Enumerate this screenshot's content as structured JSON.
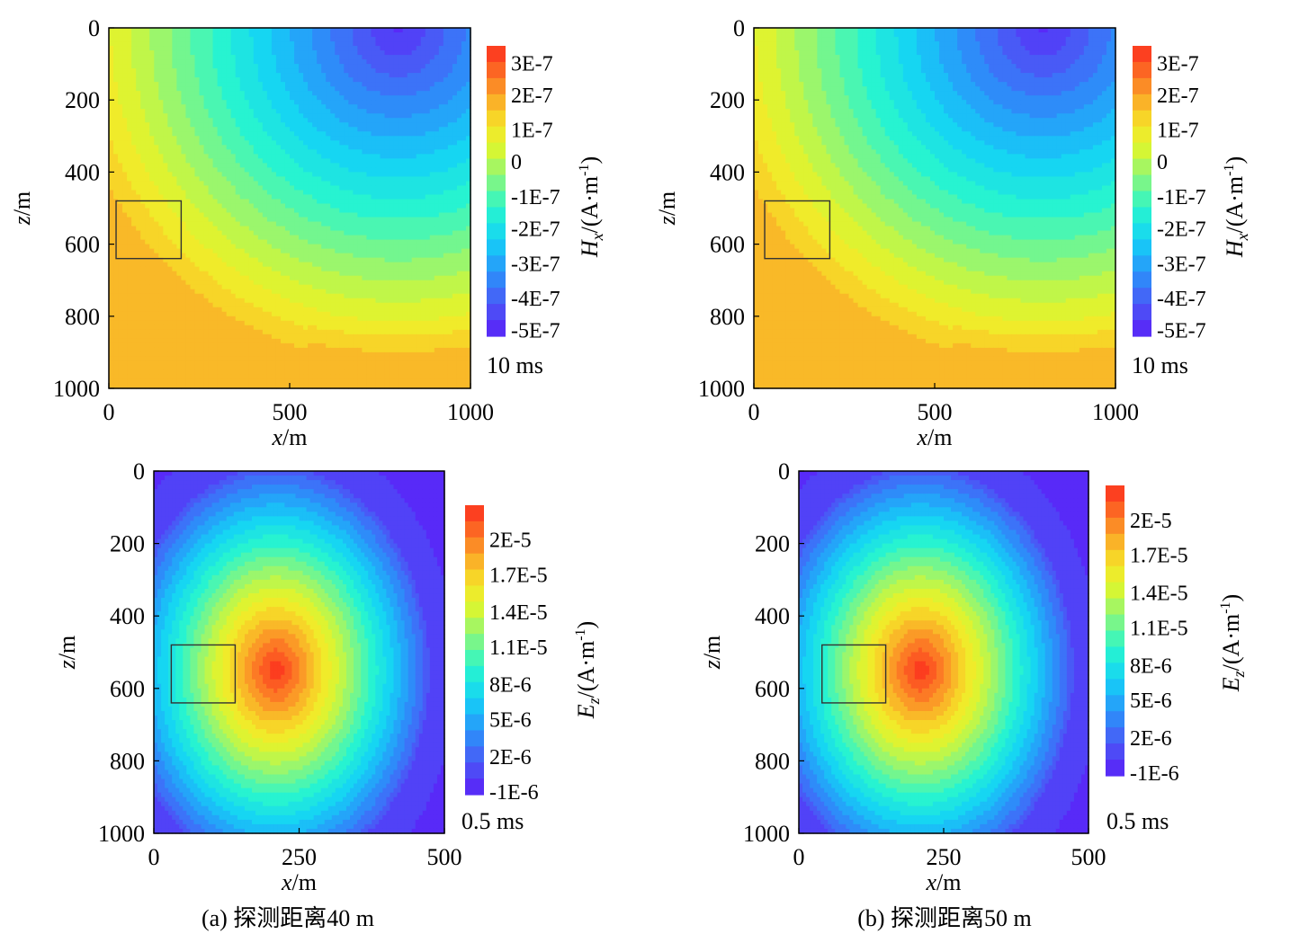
{
  "panels": [
    {
      "id": "top-left",
      "field": "Hx",
      "time_label": "10 ms",
      "xlabel_var": "x",
      "xlabel_unit": "/m",
      "ylabel_var": "z",
      "ylabel_unit": "/m",
      "x_ticks": [
        "0",
        "500",
        "1000"
      ],
      "y_ticks": [
        "0",
        "200",
        "400",
        "600",
        "800",
        "1000"
      ],
      "colorbar_ticks": [
        "3E-7",
        "2E-7",
        "1E-7",
        "0",
        "-1E-7",
        "-2E-7",
        "-3E-7",
        "-4E-7",
        "-5E-7"
      ],
      "colorbar_label_var": "H",
      "colorbar_label_sub": "x",
      "colorbar_label_unit": "/(A·m",
      "colorbar_label_sup": "-1",
      "colorbar_label_close": ")"
    },
    {
      "id": "top-right",
      "field": "Hx",
      "time_label": "10 ms",
      "xlabel_var": "x",
      "xlabel_unit": "/m",
      "ylabel_var": "z",
      "ylabel_unit": "/m",
      "x_ticks": [
        "0",
        "500",
        "1000"
      ],
      "y_ticks": [
        "0",
        "200",
        "400",
        "600",
        "800",
        "1000"
      ],
      "colorbar_ticks": [
        "3E-7",
        "2E-7",
        "1E-7",
        "0",
        "-1E-7",
        "-2E-7",
        "-3E-7",
        "-4E-7",
        "-5E-7"
      ],
      "colorbar_label_var": "H",
      "colorbar_label_sub": "x",
      "colorbar_label_unit": "/(A·m",
      "colorbar_label_sup": "-1",
      "colorbar_label_close": ")"
    },
    {
      "id": "bottom-left",
      "field": "Ez",
      "time_label": "0.5 ms",
      "xlabel_var": "x",
      "xlabel_unit": "/m",
      "ylabel_var": "z",
      "ylabel_unit": "/m",
      "x_ticks": [
        "0",
        "250",
        "500"
      ],
      "y_ticks": [
        "0",
        "200",
        "400",
        "600",
        "800",
        "1000"
      ],
      "colorbar_ticks": [
        "2E-5",
        "1.7E-5",
        "1.4E-5",
        "1.1E-5",
        "8E-6",
        "5E-6",
        "2E-6",
        "-1E-6"
      ],
      "colorbar_label_var": "E",
      "colorbar_label_sub": "z",
      "colorbar_label_unit": "/(A·m",
      "colorbar_label_sup": "-1",
      "colorbar_label_close": ")"
    },
    {
      "id": "bottom-right",
      "field": "Ez",
      "time_label": "0.5 ms",
      "xlabel_var": "x",
      "xlabel_unit": "/m",
      "ylabel_var": "z",
      "ylabel_unit": "/m",
      "x_ticks": [
        "0",
        "250",
        "500"
      ],
      "y_ticks": [
        "0",
        "200",
        "400",
        "600",
        "800",
        "1000"
      ],
      "colorbar_ticks": [
        "2E-5",
        "1.7E-5",
        "1.4E-5",
        "1.1E-5",
        "8E-6",
        "5E-6",
        "2E-6",
        "-1E-6"
      ],
      "colorbar_label_var": "E",
      "colorbar_label_sub": "z",
      "colorbar_label_unit": "/(A·m",
      "colorbar_label_sup": "-1",
      "colorbar_label_close": ")"
    }
  ],
  "captions": [
    "(a) 探测距离40 m",
    "(b) 探测距离50 m"
  ],
  "chart_data": [
    {
      "type": "heatmap",
      "panel": "a-top",
      "quantity": "Hx",
      "time": "10 ms",
      "x_range": [
        0,
        1000
      ],
      "z_range": [
        0,
        1000
      ],
      "z_inverted": true,
      "value_range": [
        -5e-07,
        3.5e-07
      ],
      "levels": [
        -5e-07,
        -4e-07,
        -3e-07,
        -2e-07,
        -1e-07,
        0,
        1e-07,
        2e-07,
        3e-07
      ],
      "minimum": {
        "x": 800,
        "z": 0,
        "value": -5e-07
      },
      "anomaly_box": {
        "x": [
          20,
          200
        ],
        "z": [
          480,
          640
        ]
      }
    },
    {
      "type": "heatmap",
      "panel": "b-top",
      "quantity": "Hx",
      "time": "10 ms",
      "x_range": [
        0,
        1000
      ],
      "z_range": [
        0,
        1000
      ],
      "z_inverted": true,
      "value_range": [
        -5e-07,
        3.5e-07
      ],
      "levels": [
        -5e-07,
        -4e-07,
        -3e-07,
        -2e-07,
        -1e-07,
        0,
        1e-07,
        2e-07,
        3e-07
      ],
      "minimum": {
        "x": 800,
        "z": 0,
        "value": -5e-07
      },
      "anomaly_box": {
        "x": [
          30,
          210
        ],
        "z": [
          480,
          640
        ]
      }
    },
    {
      "type": "heatmap",
      "panel": "a-bottom",
      "quantity": "Ez",
      "time": "0.5 ms",
      "x_range": [
        0,
        500
      ],
      "z_range": [
        0,
        1000
      ],
      "z_inverted": true,
      "value_range": [
        -2.5e-06,
        2.15e-05
      ],
      "levels": [
        -1e-06,
        2e-06,
        5e-06,
        8e-06,
        1.1e-05,
        1.4e-05,
        1.7e-05,
        2e-05
      ],
      "maximum": {
        "x": 210,
        "z": 550,
        "value": 2.1e-05
      },
      "anomaly_box": {
        "x": [
          30,
          140
        ],
        "z": [
          480,
          640
        ]
      }
    },
    {
      "type": "heatmap",
      "panel": "b-bottom",
      "quantity": "Ez",
      "time": "0.5 ms",
      "x_range": [
        0,
        500
      ],
      "z_range": [
        0,
        1000
      ],
      "z_inverted": true,
      "value_range": [
        -2.5e-06,
        2.3e-05
      ],
      "levels": [
        -1e-06,
        2e-06,
        5e-06,
        8e-06,
        1.1e-05,
        1.4e-05,
        1.7e-05,
        2e-05
      ],
      "maximum": {
        "x": 210,
        "z": 550,
        "value": 2.2e-05
      },
      "anomaly_box": {
        "x": [
          40,
          150
        ],
        "z": [
          480,
          640
        ]
      }
    }
  ]
}
